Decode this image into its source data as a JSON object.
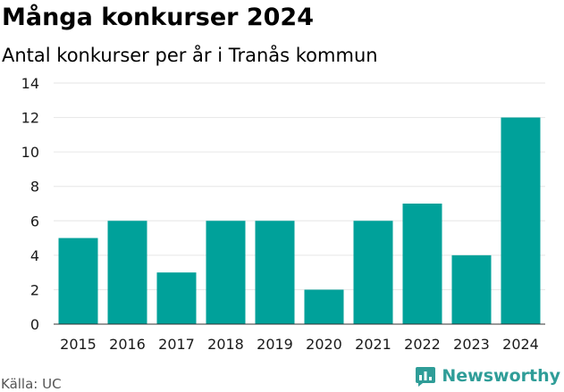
{
  "title": "Många konkurser 2024",
  "subtitle": "Antal konkurser per år i Tranås kommun",
  "source": "Källa: UC",
  "brand": {
    "name": "Newsworthy",
    "color": "#2f9d98",
    "icon": "newsworthy-logo-icon"
  },
  "chart_data": {
    "type": "bar",
    "categories": [
      "2015",
      "2016",
      "2017",
      "2018",
      "2019",
      "2020",
      "2021",
      "2022",
      "2023",
      "2024"
    ],
    "values": [
      5,
      6,
      3,
      6,
      6,
      2,
      6,
      7,
      4,
      12
    ],
    "title": "Många konkurser 2024",
    "subtitle": "Antal konkurser per år i Tranås kommun",
    "xlabel": "",
    "ylabel": "",
    "ylim": [
      0,
      14
    ],
    "yticks": [
      0,
      2,
      4,
      6,
      8,
      10,
      12,
      14
    ],
    "grid": true,
    "legend": "none",
    "bar_color": "#00a19a",
    "grid_color": "#e6e6e6"
  }
}
